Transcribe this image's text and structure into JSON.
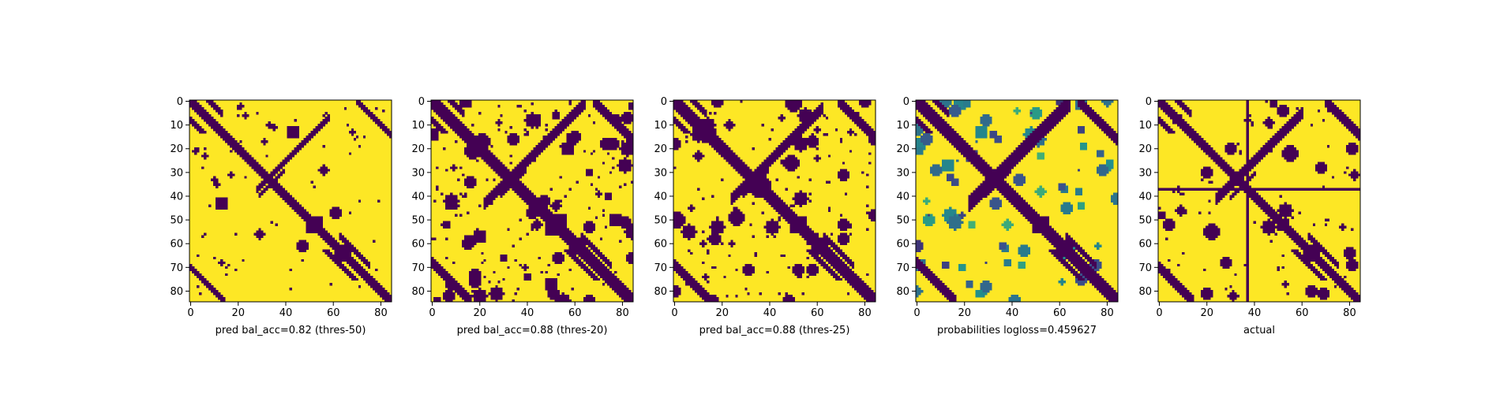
{
  "chart_data": [
    {
      "type": "heatmap",
      "title": "",
      "xlabel": "pred bal_acc=0.82 (thres-50)",
      "ylabel": "",
      "xlim": [
        0,
        85
      ],
      "ylim": [
        85,
        0
      ],
      "xticks": [
        "0",
        "20",
        "40",
        "60",
        "80"
      ],
      "yticks": [
        "0",
        "10",
        "20",
        "30",
        "40",
        "50",
        "60",
        "70",
        "80"
      ],
      "matrix_size": 85,
      "colormap": "viridis",
      "binary": true,
      "features": {
        "diagonal_halfwidth": 1.6,
        "antidiagonal": {
          "x0": 28,
          "x1": 58,
          "sum": 65,
          "halfwidth": 1.4
        },
        "cross_center": [
          34,
          34
        ],
        "corner_bands": [
          {
            "x0": 0,
            "x1": 14,
            "sum": 84,
            "halfwidth": 1.4
          },
          {
            "x0": 70,
            "x1": 84,
            "sum": 84,
            "halfwidth": 1.4
          }
        ],
        "knot_center": [
          64,
          64
        ],
        "block": [
          52,
          52,
          6
        ],
        "blobs": 10,
        "noise_density": 0.004
      }
    },
    {
      "type": "heatmap",
      "title": "",
      "xlabel": "pred bal_acc=0.88 (thres-20)",
      "ylabel": "",
      "xlim": [
        0,
        85
      ],
      "ylim": [
        85,
        0
      ],
      "xticks": [
        "0",
        "20",
        "40",
        "60",
        "80"
      ],
      "yticks": [
        "0",
        "10",
        "20",
        "30",
        "40",
        "50",
        "60",
        "70",
        "80"
      ],
      "matrix_size": 85,
      "colormap": "viridis",
      "binary": true,
      "features": {
        "diagonal_halfwidth": 2.6,
        "antidiagonal": {
          "x0": 22,
          "x1": 64,
          "sum": 65,
          "halfwidth": 2.0
        },
        "cross_center": [
          34,
          34
        ],
        "corner_bands": [
          {
            "x0": 0,
            "x1": 16,
            "sum": 84,
            "halfwidth": 2.0
          },
          {
            "x0": 68,
            "x1": 84,
            "sum": 84,
            "halfwidth": 2.0
          }
        ],
        "knot_center": [
          61,
          61
        ],
        "block": [
          52,
          52,
          8
        ],
        "blobs": 34,
        "noise_density": 0.012
      }
    },
    {
      "type": "heatmap",
      "title": "",
      "xlabel": "pred bal_acc=0.88 (thres-25)",
      "ylabel": "",
      "xlim": [
        0,
        85
      ],
      "ylim": [
        85,
        0
      ],
      "xticks": [
        "0",
        "20",
        "40",
        "60",
        "80"
      ],
      "yticks": [
        "0",
        "10",
        "20",
        "30",
        "40",
        "50",
        "60",
        "70",
        "80"
      ],
      "matrix_size": 85,
      "colormap": "viridis",
      "binary": true,
      "features": {
        "diagonal_halfwidth": 2.2,
        "antidiagonal": {
          "x0": 24,
          "x1": 62,
          "sum": 65,
          "halfwidth": 1.8
        },
        "cross_center": [
          34,
          34
        ],
        "corner_bands": [
          {
            "x0": 0,
            "x1": 15,
            "sum": 84,
            "halfwidth": 1.8
          },
          {
            "x0": 69,
            "x1": 84,
            "sum": 84,
            "halfwidth": 1.8
          }
        ],
        "knot_center": [
          61,
          61
        ],
        "block": [
          52,
          52,
          7
        ],
        "blobs": 24,
        "noise_density": 0.009
      }
    },
    {
      "type": "heatmap",
      "title": "",
      "xlabel": "probabilities logloss=0.459627",
      "ylabel": "",
      "xlim": [
        0,
        85
      ],
      "ylim": [
        85,
        0
      ],
      "xticks": [
        "0",
        "20",
        "40",
        "60",
        "80"
      ],
      "yticks": [
        "0",
        "10",
        "20",
        "30",
        "40",
        "50",
        "60",
        "70",
        "80"
      ],
      "matrix_size": 85,
      "colormap": "viridis",
      "binary": false,
      "features": {
        "diagonal_halfwidth": 2.4,
        "antidiagonal": {
          "x0": 22,
          "x1": 64,
          "sum": 65,
          "halfwidth": 2.2
        },
        "cross_center": [
          34,
          34
        ],
        "corner_bands": [
          {
            "x0": 0,
            "x1": 16,
            "sum": 84,
            "halfwidth": 2.0
          },
          {
            "x0": 68,
            "x1": 84,
            "sum": 84,
            "halfwidth": 2.0
          }
        ],
        "knot_center": [
          62,
          62
        ],
        "block": [
          52,
          52,
          7
        ],
        "blobs": 40,
        "noise_density": 0.0
      }
    },
    {
      "type": "heatmap",
      "title": "",
      "xlabel": "actual",
      "ylabel": "",
      "xlim": [
        0,
        85
      ],
      "ylim": [
        85,
        0
      ],
      "xticks": [
        "0",
        "20",
        "40",
        "60",
        "80"
      ],
      "yticks": [
        "0",
        "10",
        "20",
        "30",
        "40",
        "50",
        "60",
        "70",
        "80"
      ],
      "matrix_size": 85,
      "colormap": "viridis",
      "binary": true,
      "features": {
        "diagonal_halfwidth": 1.8,
        "antidiagonal": {
          "x0": 24,
          "x1": 60,
          "sum": 65,
          "halfwidth": 1.5
        },
        "cross_center": [
          35,
          35
        ],
        "corner_bands": [
          {
            "x0": 0,
            "x1": 14,
            "sum": 84,
            "halfwidth": 1.5
          },
          {
            "x0": 70,
            "x1": 84,
            "sum": 84,
            "halfwidth": 1.5
          }
        ],
        "knot_center": [
          64,
          64
        ],
        "block": [
          52,
          52,
          5
        ],
        "blobs": 16,
        "noise_density": 0.006,
        "full_line_row": 37,
        "full_line_col": 37
      }
    }
  ],
  "colors": {
    "low": "#440154",
    "high": "#fde725",
    "viridis_stops": [
      "#440154",
      "#3b528b",
      "#21918c",
      "#5ec962",
      "#fde725"
    ]
  }
}
